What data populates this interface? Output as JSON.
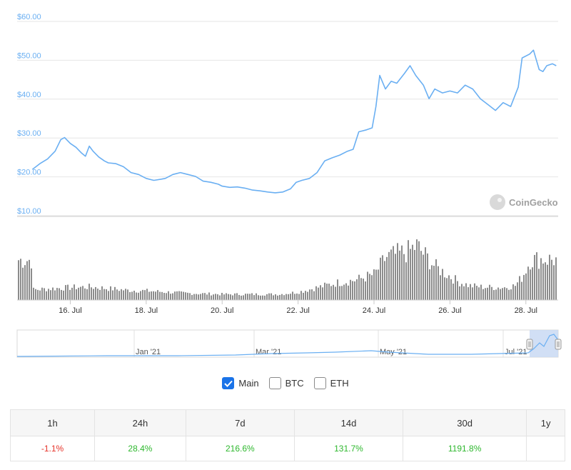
{
  "chart_data": [
    {
      "type": "line",
      "series": [
        {
          "values": [
            [
              15.0,
              20.8
            ],
            [
              15.2,
              22.3
            ],
            [
              15.4,
              23.5
            ],
            [
              15.6,
              25.5
            ],
            [
              15.75,
              28.5
            ],
            [
              15.85,
              29.0
            ],
            [
              16.0,
              27.5
            ],
            [
              16.15,
              26.5
            ],
            [
              16.3,
              25.0
            ],
            [
              16.4,
              24.2
            ],
            [
              16.5,
              26.8
            ],
            [
              16.6,
              25.5
            ],
            [
              16.75,
              24.0
            ],
            [
              16.9,
              23.0
            ],
            [
              17.0,
              22.5
            ],
            [
              17.2,
              22.3
            ],
            [
              17.4,
              21.5
            ],
            [
              17.6,
              20.0
            ],
            [
              17.8,
              19.5
            ],
            [
              18.0,
              18.5
            ],
            [
              18.2,
              18.0
            ],
            [
              18.4,
              18.3
            ],
            [
              18.5,
              18.5
            ],
            [
              18.7,
              19.5
            ],
            [
              18.9,
              20.0
            ],
            [
              19.1,
              19.5
            ],
            [
              19.3,
              19.0
            ],
            [
              19.5,
              17.8
            ],
            [
              19.7,
              17.5
            ],
            [
              19.9,
              17.0
            ],
            [
              20.0,
              16.5
            ],
            [
              20.2,
              16.2
            ],
            [
              20.4,
              16.3
            ],
            [
              20.6,
              16.0
            ],
            [
              20.8,
              15.5
            ],
            [
              21.0,
              15.3
            ],
            [
              21.2,
              15.0
            ],
            [
              21.4,
              14.8
            ],
            [
              21.6,
              15.0
            ],
            [
              21.8,
              15.8
            ],
            [
              21.95,
              17.5
            ],
            [
              22.1,
              18.0
            ],
            [
              22.3,
              18.5
            ],
            [
              22.5,
              20.0
            ],
            [
              22.7,
              23.0
            ],
            [
              22.9,
              23.8
            ],
            [
              23.1,
              24.5
            ],
            [
              23.3,
              25.5
            ],
            [
              23.45,
              26.0
            ],
            [
              23.6,
              30.5
            ],
            [
              23.8,
              31.0
            ],
            [
              23.95,
              31.5
            ],
            [
              24.05,
              37.0
            ],
            [
              24.15,
              45.0
            ],
            [
              24.3,
              41.5
            ],
            [
              24.45,
              43.5
            ],
            [
              24.6,
              43.0
            ],
            [
              24.8,
              45.5
            ],
            [
              24.95,
              47.5
            ],
            [
              25.1,
              45.0
            ],
            [
              25.3,
              42.5
            ],
            [
              25.45,
              39.0
            ],
            [
              25.6,
              41.5
            ],
            [
              25.8,
              40.5
            ],
            [
              26.0,
              41.0
            ],
            [
              26.2,
              40.5
            ],
            [
              26.4,
              42.5
            ],
            [
              26.6,
              41.5
            ],
            [
              26.8,
              39.0
            ],
            [
              27.0,
              37.5
            ],
            [
              27.2,
              36.0
            ],
            [
              27.4,
              38.0
            ],
            [
              27.6,
              37.0
            ],
            [
              27.8,
              42.0
            ],
            [
              27.9,
              49.5
            ],
            [
              28.1,
              50.5
            ],
            [
              28.2,
              51.5
            ],
            [
              28.35,
              46.5
            ],
            [
              28.45,
              46.0
            ],
            [
              28.55,
              47.5
            ],
            [
              28.7,
              48.0
            ],
            [
              28.8,
              47.5
            ]
          ]
        }
      ],
      "ylim": [
        10,
        60
      ],
      "yticks": [
        "$10.00",
        "$20.00",
        "$30.00",
        "$40.00",
        "$50.00",
        "$60.00"
      ],
      "ytick_values": [
        10,
        20,
        30,
        40,
        50,
        60
      ],
      "grid": true
    },
    {
      "type": "bar",
      "description_key": "volume",
      "x_categories": [
        "16. Jul",
        "18. Jul",
        "20. Jul",
        "22. Jul",
        "24. Jul",
        "26. Jul",
        "28. Jul"
      ],
      "x_tick_values": [
        16,
        18,
        20,
        22,
        24,
        26,
        28
      ],
      "volume_profile": [
        [
          15.0,
          0.18
        ],
        [
          15.5,
          0.2
        ],
        [
          16.0,
          0.22
        ],
        [
          16.5,
          0.23
        ],
        [
          17.0,
          0.2
        ],
        [
          17.5,
          0.17
        ],
        [
          18.0,
          0.16
        ],
        [
          18.5,
          0.14
        ],
        [
          19.0,
          0.12
        ],
        [
          19.5,
          0.11
        ],
        [
          20.0,
          0.1
        ],
        [
          20.5,
          0.1
        ],
        [
          21.0,
          0.1
        ],
        [
          21.5,
          0.1
        ],
        [
          22.0,
          0.14
        ],
        [
          22.5,
          0.22
        ],
        [
          23.0,
          0.3
        ],
        [
          23.5,
          0.35
        ],
        [
          24.0,
          0.45
        ],
        [
          24.3,
          0.75
        ],
        [
          24.6,
          0.8
        ],
        [
          24.9,
          0.85
        ],
        [
          25.1,
          0.95
        ],
        [
          25.3,
          0.8
        ],
        [
          25.6,
          0.58
        ],
        [
          25.9,
          0.45
        ],
        [
          26.2,
          0.32
        ],
        [
          26.5,
          0.25
        ],
        [
          26.8,
          0.23
        ],
        [
          27.1,
          0.22
        ],
        [
          27.4,
          0.22
        ],
        [
          27.7,
          0.25
        ],
        [
          27.9,
          0.42
        ],
        [
          28.1,
          0.7
        ],
        [
          28.4,
          0.72
        ],
        [
          28.8,
          0.7
        ]
      ]
    },
    {
      "type": "area",
      "description_key": "navigator",
      "x_categories": [
        "Jan '21",
        "Mar '21",
        "May '21",
        "Jul '21"
      ]
    }
  ],
  "watermark": "CoinGecko",
  "series_toggles": [
    {
      "label": "Main",
      "checked": true
    },
    {
      "label": "BTC",
      "checked": false
    },
    {
      "label": "ETH",
      "checked": false
    }
  ],
  "performance": {
    "headers": [
      "1h",
      "24h",
      "7d",
      "14d",
      "30d",
      "1y"
    ],
    "values": [
      "-1.1%",
      "28.4%",
      "216.6%",
      "131.7%",
      "1191.8%",
      ""
    ],
    "value_colors": [
      "#e6332a",
      "#2eb82e",
      "#2eb82e",
      "#2eb82e",
      "#2eb82e",
      "#333333"
    ]
  },
  "colors": {
    "line": "#6aaff2",
    "volume": "#8c8c8c",
    "grid": "#e6e6e6",
    "axis_label": "#6aaff2"
  }
}
